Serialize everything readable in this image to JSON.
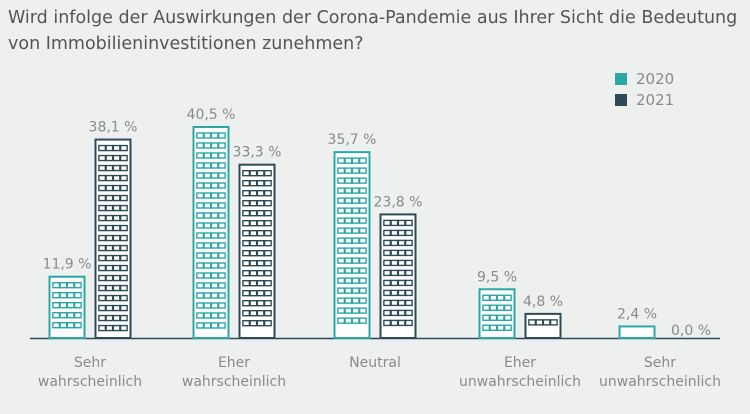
{
  "chart_data": {
    "type": "bar",
    "title_lines": [
      "Wird infolge der Auswirkungen der Corona-Pandemie aus Ihrer Sicht die Bedeutung",
      "von Immobilieninvestitionen zunehmen?"
    ],
    "categories": [
      [
        "Sehr",
        "wahrscheinlich"
      ],
      [
        "Eher",
        "wahrscheinlich"
      ],
      [
        "Neutral"
      ],
      [
        "Eher",
        "unwahrscheinlich"
      ],
      [
        "Sehr",
        "unwahrscheinlich"
      ]
    ],
    "series": [
      {
        "name": "2020",
        "color": "#2ba7a8",
        "values": [
          11.9,
          40.5,
          35.7,
          9.5,
          2.4
        ],
        "labels": [
          "11,9 %",
          "40,5 %",
          "35,7 %",
          "9,5 %",
          "2,4 %"
        ]
      },
      {
        "name": "2021",
        "color": "#2e4a57",
        "values": [
          38.1,
          33.3,
          23.8,
          4.8,
          0.0
        ],
        "labels": [
          "38,1 %",
          "33,3 %",
          "23,8 %",
          "4,8 %",
          "0,0 %"
        ]
      }
    ],
    "ylim": [
      0,
      40.5
    ],
    "legend_position": "top-right",
    "baseline_color": "#2e4a57"
  }
}
